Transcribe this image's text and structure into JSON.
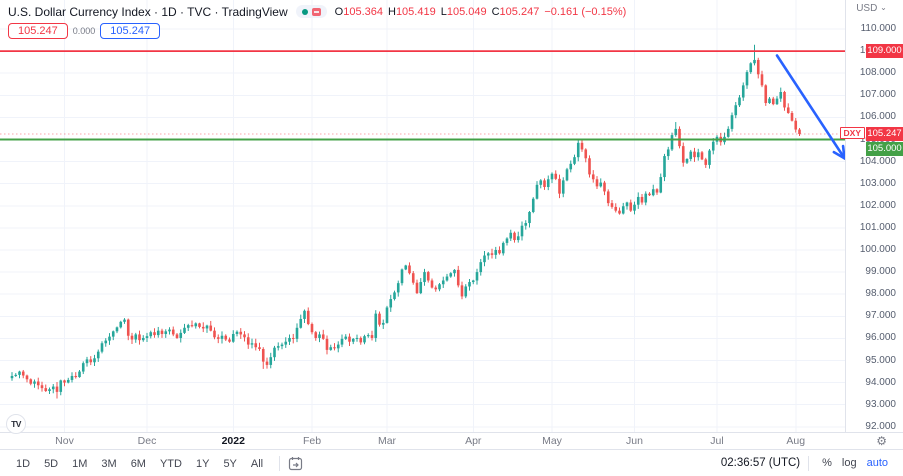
{
  "header": {
    "title": "U.S. Dollar Currency Index",
    "interval": "1D",
    "exchange": "TVC",
    "platform": "TradingView",
    "ohlc": {
      "o_label": "O",
      "o": "105.364",
      "h_label": "H",
      "h": "105.419",
      "l_label": "L",
      "l": "105.049",
      "c_label": "C",
      "c": "105.247",
      "change": "−0.161 (−0.15%)"
    },
    "badges": {
      "sell": "105.247",
      "spread": "0.000",
      "buy": "105.247"
    }
  },
  "price_axis": {
    "currency": "USD",
    "ticks": [
      "110.000",
      "109.000",
      "108.000",
      "107.000",
      "106.000",
      "105.000",
      "104.000",
      "103.000",
      "102.000",
      "101.000",
      "100.000",
      "99.000",
      "98.000",
      "97.000",
      "96.000",
      "95.000",
      "94.000",
      "93.000",
      "92.000"
    ],
    "symbol_badge": "DXY",
    "price_badge": "105.247"
  },
  "time_axis": {
    "labels": [
      {
        "text": "Nov",
        "bar": 14,
        "bold": false
      },
      {
        "text": "Dec",
        "bar": 36,
        "bold": false
      },
      {
        "text": "2022",
        "bar": 59,
        "bold": true
      },
      {
        "text": "Feb",
        "bar": 80,
        "bold": false
      },
      {
        "text": "Mar",
        "bar": 100,
        "bold": false
      },
      {
        "text": "Apr",
        "bar": 123,
        "bold": false
      },
      {
        "text": "May",
        "bar": 144,
        "bold": false
      },
      {
        "text": "Jun",
        "bar": 166,
        "bold": false
      },
      {
        "text": "Jul",
        "bar": 188,
        "bold": false
      },
      {
        "text": "Aug",
        "bar": 209,
        "bold": false
      }
    ]
  },
  "toolbar": {
    "ranges": [
      "1D",
      "5D",
      "1M",
      "3M",
      "6M",
      "YTD",
      "1Y",
      "5Y",
      "All"
    ],
    "clock": "02:36:57 (UTC)",
    "percent_label": "%",
    "log_label": "log",
    "auto_label": "auto"
  },
  "logo_text": "TV",
  "colors": {
    "up": "#26a69a",
    "down": "#ef5350",
    "resistance": "#f23645",
    "support": "#43a047",
    "price_line": "#f23645",
    "arrow": "#2962ff",
    "grid": "#f0f3fa",
    "text": "#131722",
    "muted": "#787b86"
  },
  "chart_data": {
    "type": "candlestick",
    "title": "U.S. Dollar Currency Index (DXY), daily candles, Oct 2021 – Aug 2022",
    "symbol": "DXY",
    "last_price": 105.247,
    "y_axis": {
      "min": 92,
      "max": 110,
      "step": 1
    },
    "first_open": 94.2,
    "closes": [
      94.3,
      94.35,
      94.5,
      94.32,
      94.15,
      93.95,
      94.05,
      93.88,
      93.75,
      93.62,
      93.7,
      93.82,
      93.58,
      94.1,
      94.0,
      94.12,
      94.3,
      94.25,
      94.5,
      94.88,
      95.05,
      94.92,
      95.1,
      95.4,
      95.78,
      95.9,
      96.08,
      96.32,
      96.5,
      96.75,
      96.85,
      96.12,
      95.95,
      96.18,
      95.92,
      96.02,
      96.1,
      96.28,
      96.15,
      96.35,
      96.2,
      96.32,
      96.4,
      96.18,
      96.02,
      96.25,
      96.48,
      96.6,
      96.55,
      96.68,
      96.52,
      96.45,
      96.58,
      96.35,
      96.05,
      95.98,
      96.12,
      95.95,
      95.85,
      96.2,
      96.3,
      96.18,
      96.05,
      95.72,
      95.78,
      95.6,
      95.52,
      94.95,
      94.8,
      95.15,
      95.58,
      95.65,
      95.72,
      95.85,
      96.02,
      95.98,
      96.48,
      96.88,
      97.25,
      96.65,
      96.28,
      96.02,
      96.18,
      95.98,
      95.48,
      95.6,
      95.55,
      95.72,
      95.98,
      96.08,
      95.85,
      95.98,
      96.02,
      95.82,
      96.1,
      96.15,
      96.02,
      97.12,
      96.62,
      96.7,
      97.4,
      97.78,
      98.08,
      98.5,
      99.12,
      99.3,
      98.95,
      98.52,
      98.05,
      98.55,
      99.0,
      98.62,
      98.3,
      98.22,
      98.45,
      98.62,
      98.8,
      98.95,
      99.1,
      98.4,
      97.9,
      98.35,
      98.55,
      98.62,
      99.0,
      99.45,
      99.75,
      99.85,
      99.78,
      100.0,
      99.85,
      100.32,
      100.52,
      100.78,
      100.45,
      100.62,
      101.1,
      101.22,
      101.72,
      102.32,
      102.95,
      103.15,
      102.85,
      103.2,
      103.45,
      103.22,
      102.55,
      103.15,
      103.65,
      103.9,
      104.2,
      104.85,
      104.55,
      104.15,
      103.42,
      103.2,
      102.88,
      103.05,
      102.65,
      102.12,
      101.95,
      101.78,
      101.65,
      101.98,
      102.15,
      101.78,
      102.05,
      102.4,
      102.15,
      102.55,
      102.48,
      102.75,
      102.6,
      103.3,
      104.25,
      104.55,
      105.2,
      105.48,
      104.7,
      103.95,
      104.12,
      104.45,
      104.2,
      104.42,
      104.1,
      103.85,
      104.5,
      104.9,
      105.12,
      104.88,
      105.12,
      105.48,
      106.1,
      106.55,
      106.9,
      107.45,
      108.05,
      108.45,
      108.6,
      107.95,
      107.45,
      106.65,
      106.85,
      106.6,
      106.85,
      107.15,
      106.45,
      106.2,
      105.85,
      105.45,
      105.25
    ],
    "wick_overrides": [
      {
        "index": 12,
        "low": 93.28
      },
      {
        "index": 67,
        "low": 94.62
      },
      {
        "index": 177,
        "high": 105.79
      },
      {
        "index": 198,
        "high": 109.29
      }
    ],
    "levels": [
      {
        "name": "resistance",
        "price": 109.0,
        "label": "109.000",
        "style": "solid",
        "color": "#f23645"
      },
      {
        "name": "support",
        "price": 105.0,
        "label": "105.000",
        "style": "solid",
        "color": "#43a047"
      },
      {
        "name": "last-price",
        "price": 105.247,
        "label": "105.247",
        "style": "dotted",
        "color": "#f23645"
      }
    ],
    "arrow": {
      "from": {
        "bar": 204,
        "price": 108.8
      },
      "to": {
        "bar": 222,
        "price": 104.15
      }
    }
  }
}
